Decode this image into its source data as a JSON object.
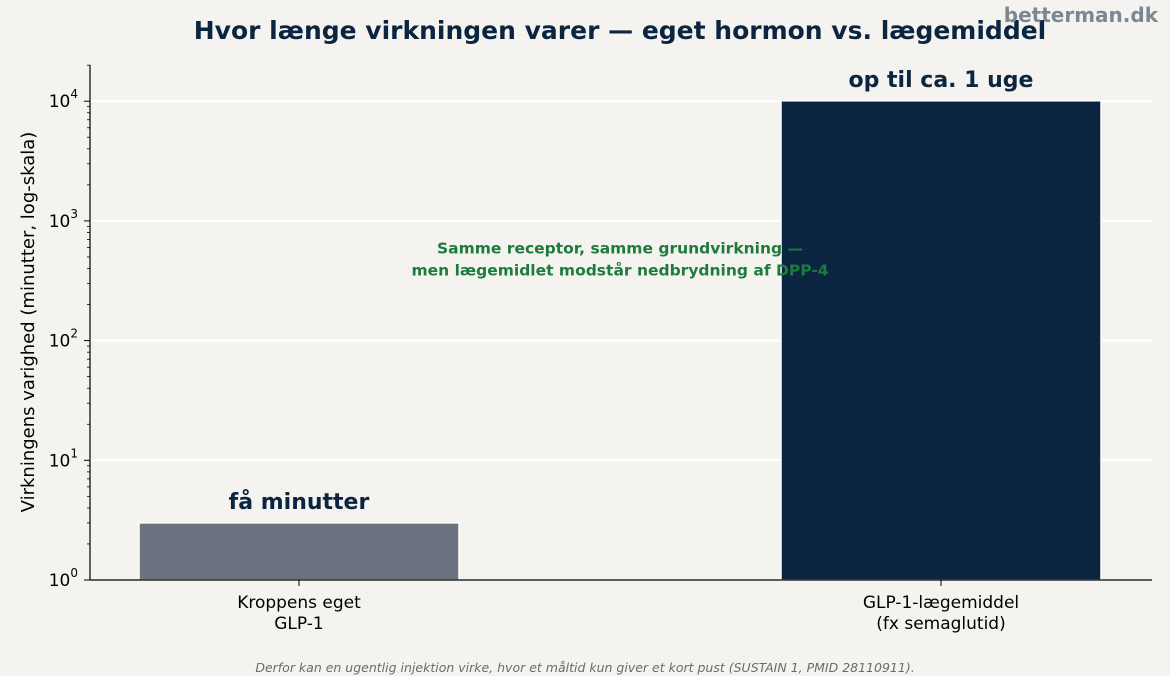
{
  "brand": "betterman.dk",
  "caption": "Derfor kan en ugentlig injektion virke, hvor et måltid kun giver et kort pust (SUSTAIN 1, PMID 28110911).",
  "colors": {
    "background": "#f5f3f0",
    "bar_native": "#6b7280",
    "bar_drug": "#0b2540",
    "annotation": "#1e7b3e",
    "title": "#0b2540",
    "grid": "#ffffff"
  },
  "chart_data": {
    "type": "bar",
    "title": "Hvor længe virkningen varer — eget hormon vs. lægemiddel",
    "ylabel": "Virkningens varighed (minutter, log-skala)",
    "xlabel": "",
    "yscale": "log",
    "ylim": [
      1,
      20000
    ],
    "yticks": [
      {
        "base": "10",
        "exp": "0"
      },
      {
        "base": "10",
        "exp": "1"
      },
      {
        "base": "10",
        "exp": "2"
      },
      {
        "base": "10",
        "exp": "3"
      },
      {
        "base": "10",
        "exp": "4"
      }
    ],
    "grid": true,
    "categories": [
      {
        "lines": [
          "Kroppens eget",
          "GLP-1"
        ]
      },
      {
        "lines": [
          "GLP-1-lægemiddel",
          "(fx semaglutid)"
        ]
      }
    ],
    "values": [
      3,
      10080
    ],
    "bar_labels": [
      "få minutter",
      "op til ca. 1 uge"
    ],
    "annotation": {
      "lines": [
        "Samme receptor, samme grundvirkning —",
        "men lægemidlet modstår nedbrydning af DPP-4"
      ],
      "y": 400
    }
  }
}
